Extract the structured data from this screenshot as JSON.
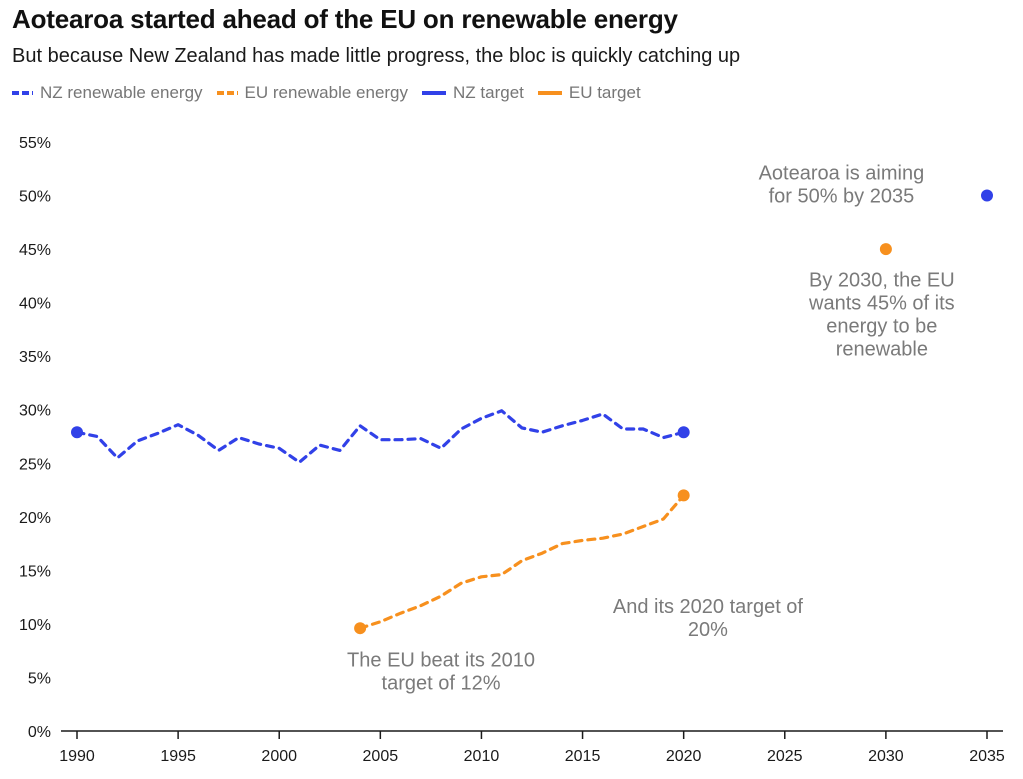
{
  "header": {
    "title": "Aotearoa started ahead of the EU on renewable energy",
    "subtitle": "But because New Zealand has made little progress, the bloc is quickly catching up"
  },
  "colors": {
    "nz": "#3141e8",
    "eu": "#f7901e",
    "annotation": "#7a7a7a",
    "axis": "#1a1a1a"
  },
  "chart_data": {
    "type": "line",
    "title": "Aotearoa started ahead of the EU on renewable energy",
    "subtitle": "But because New Zealand has made little progress, the bloc is quickly catching up",
    "xlabel": "",
    "ylabel": "",
    "xlim": [
      1990,
      2035
    ],
    "ylim": [
      0,
      55
    ],
    "grid": false,
    "legend_position": "top-left",
    "x_ticks": [
      1990,
      1995,
      2000,
      2005,
      2010,
      2015,
      2020,
      2025,
      2030,
      2035
    ],
    "x_tick_labels": [
      "1990",
      "1995",
      "2000",
      "2005",
      "2010",
      "2015",
      "2020",
      "2025",
      "2030",
      "2035"
    ],
    "y_ticks": [
      0,
      5,
      10,
      15,
      20,
      25,
      30,
      35,
      40,
      45,
      50,
      55
    ],
    "y_tick_labels": [
      "0%",
      "5%",
      "10%",
      "15%",
      "20%",
      "25%",
      "30%",
      "35%",
      "40%",
      "45%",
      "50%",
      "55%"
    ],
    "legend": [
      {
        "label": "NZ renewable energy",
        "style": "dashed",
        "color": "#3141e8"
      },
      {
        "label": "EU renewable energy",
        "style": "dashed",
        "color": "#f7901e"
      },
      {
        "label": "NZ target",
        "style": "solid",
        "color": "#3141e8"
      },
      {
        "label": "EU target",
        "style": "solid",
        "color": "#f7901e"
      }
    ],
    "series": [
      {
        "name": "NZ renewable energy",
        "style": "dashed",
        "color": "#3141e8",
        "x": [
          1990,
          1991,
          1992,
          1993,
          1994,
          1995,
          1996,
          1997,
          1998,
          1999,
          2000,
          2001,
          2002,
          2003,
          2004,
          2005,
          2006,
          2007,
          2008,
          2009,
          2010,
          2011,
          2012,
          2013,
          2014,
          2015,
          2016,
          2017,
          2018,
          2019,
          2020
        ],
        "values": [
          27.9,
          27.5,
          25.5,
          27.1,
          27.8,
          28.6,
          27.6,
          26.2,
          27.4,
          26.8,
          26.4,
          25.1,
          26.7,
          26.2,
          28.5,
          27.2,
          27.2,
          27.3,
          26.4,
          28.2,
          29.2,
          29.9,
          28.3,
          27.9,
          28.5,
          29.0,
          29.6,
          28.2,
          28.2,
          27.4,
          27.9
        ],
        "endpoint_markers": [
          1990,
          2020
        ]
      },
      {
        "name": "EU renewable energy",
        "style": "dashed",
        "color": "#f7901e",
        "x": [
          2004,
          2005,
          2006,
          2007,
          2008,
          2009,
          2010,
          2011,
          2012,
          2013,
          2014,
          2015,
          2016,
          2017,
          2018,
          2019,
          2020
        ],
        "values": [
          9.6,
          10.2,
          11.0,
          11.7,
          12.6,
          13.8,
          14.4,
          14.6,
          15.9,
          16.6,
          17.5,
          17.8,
          18.0,
          18.4,
          19.1,
          19.8,
          22.0
        ],
        "endpoint_markers": [
          2004,
          2020
        ]
      },
      {
        "name": "NZ target",
        "style": "point",
        "color": "#3141e8",
        "x": [
          2035
        ],
        "values": [
          50
        ]
      },
      {
        "name": "EU target",
        "style": "point",
        "color": "#f7901e",
        "x": [
          2030
        ],
        "values": [
          45
        ]
      }
    ],
    "annotations": [
      {
        "id": "nz-target-note",
        "lines": [
          "Aotearoa is aiming",
          "for 50% by 2035"
        ],
        "x": 2027.8,
        "y": 51.5
      },
      {
        "id": "eu-2030-note",
        "lines": [
          "By 2030, the EU",
          "wants 45% of its",
          "energy to be",
          "renewable"
        ],
        "x": 2029.8,
        "y": 41.5
      },
      {
        "id": "eu-2020-note",
        "lines": [
          "And its 2020 target of",
          "20%"
        ],
        "x": 2021.2,
        "y": 11.0
      },
      {
        "id": "eu-2010-note",
        "lines": [
          "The EU beat its 2010",
          "target of 12%"
        ],
        "x": 2008.0,
        "y": 6.0
      }
    ]
  }
}
